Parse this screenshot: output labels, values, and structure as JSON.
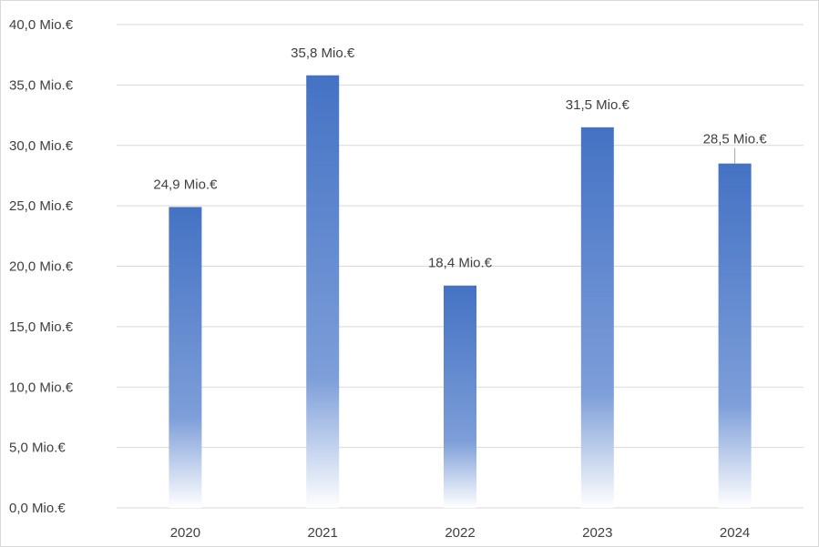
{
  "chart_data": {
    "type": "bar",
    "categories": [
      "2020",
      "2021",
      "2022",
      "2023",
      "2024"
    ],
    "values": [
      24.9,
      35.8,
      18.4,
      31.5,
      28.5
    ],
    "data_labels": [
      "24,9 Mio.€",
      "35,8 Mio.€",
      "18,4 Mio.€",
      "31,5 Mio.€",
      "28,5 Mio.€"
    ],
    "y_ticks": [
      {
        "value": 0,
        "label": "0,0 Mio.€"
      },
      {
        "value": 5,
        "label": "5,0 Mio.€"
      },
      {
        "value": 10,
        "label": "10,0 Mio.€"
      },
      {
        "value": 15,
        "label": "15,0 Mio.€"
      },
      {
        "value": 20,
        "label": "20,0 Mio.€"
      },
      {
        "value": 25,
        "label": "25,0 Mio.€"
      },
      {
        "value": 30,
        "label": "30,0 Mio.€"
      },
      {
        "value": 35,
        "label": "35,0 Mio.€"
      },
      {
        "value": 40,
        "label": "40,0 Mio.€"
      }
    ],
    "ylim": [
      0,
      40
    ],
    "grid": true,
    "legend": "none",
    "bar_color_top": "#4472c4",
    "bar_color_bottom": "#ffffff",
    "grid_color": "#d9d9d9",
    "text_color": "#404040"
  }
}
